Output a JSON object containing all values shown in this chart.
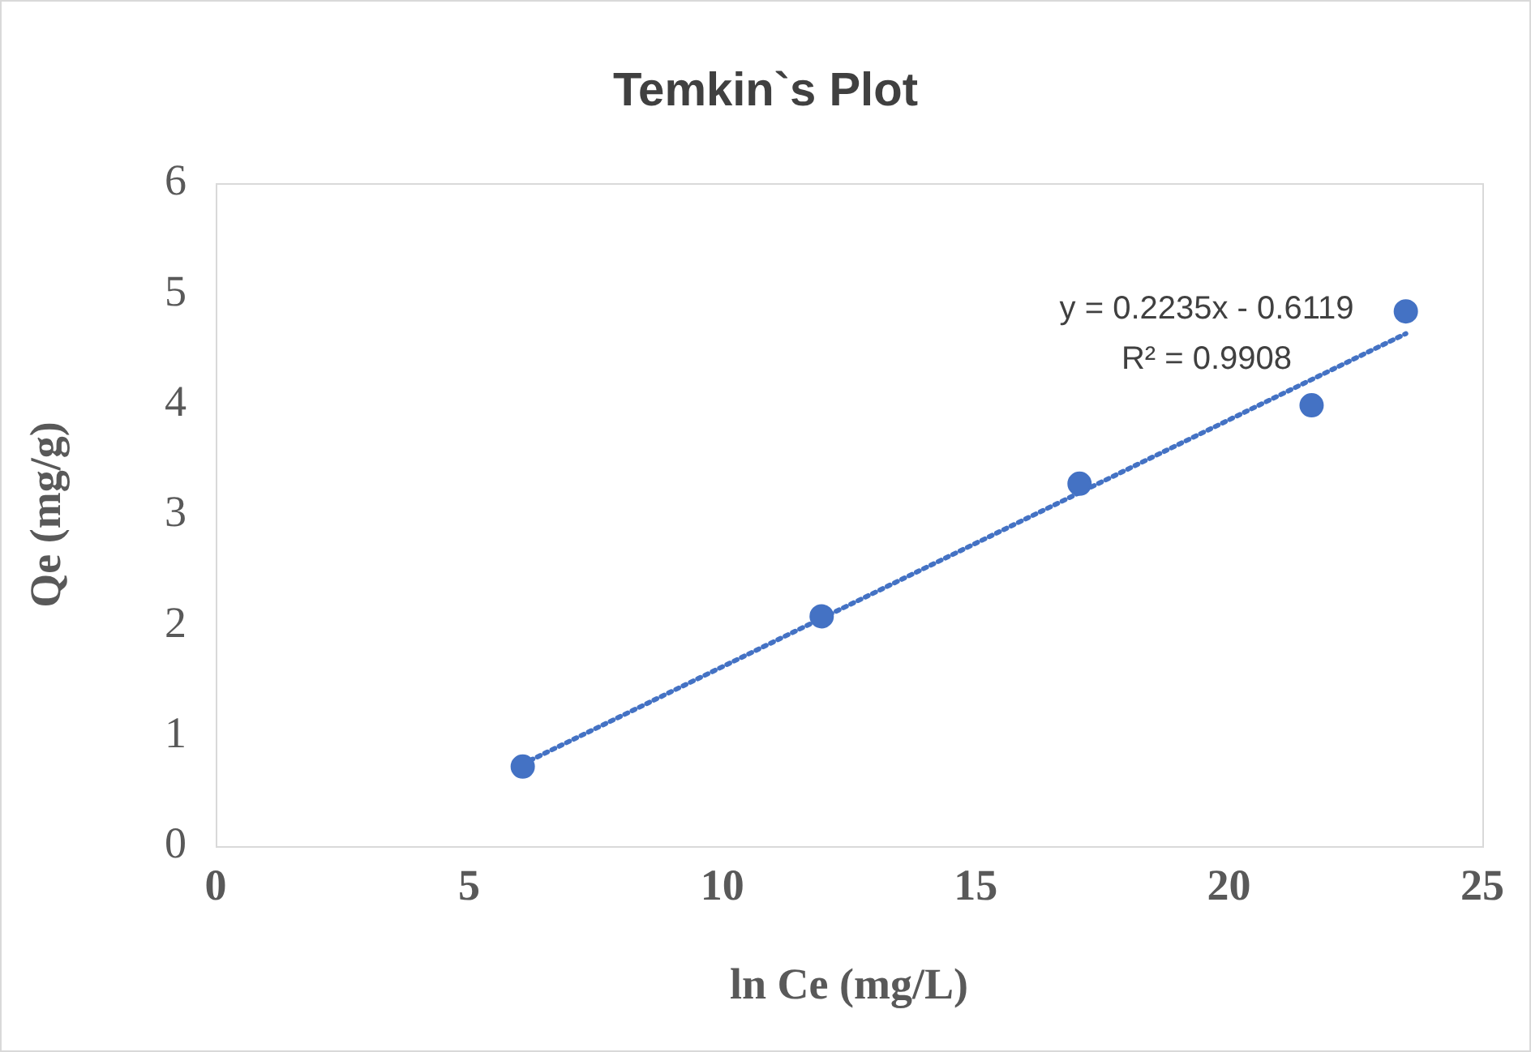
{
  "chart_data": {
    "type": "scatter",
    "title": "Temkin`s Plot",
    "xlabel": "ln Ce (mg/L)",
    "ylabel": "Qe (mg/g)",
    "x": [
      6.06,
      11.96,
      17.05,
      21.63,
      23.49
    ],
    "series": [
      {
        "color": "#4472c4",
        "values": [
          0.72,
          2.08,
          3.28,
          3.99,
          4.84
        ],
        "marker": "circle"
      },
      {
        "type": "line",
        "color": "#4472c4",
        "x": [
          6.06,
          23.49
        ],
        "values": [
          0.743,
          4.638
        ],
        "line_style": "dotted",
        "marker": "none"
      }
    ],
    "annotations": [
      "y = 0.2235x - 0.6119",
      "R² = 0.9908"
    ],
    "xlim": [
      0,
      25
    ],
    "xticks": [
      0,
      5,
      10,
      15,
      20,
      25
    ],
    "ylim": [
      0,
      6
    ],
    "yticks": [
      0,
      1,
      2,
      3,
      4,
      5,
      6
    ],
    "legend": false
  }
}
